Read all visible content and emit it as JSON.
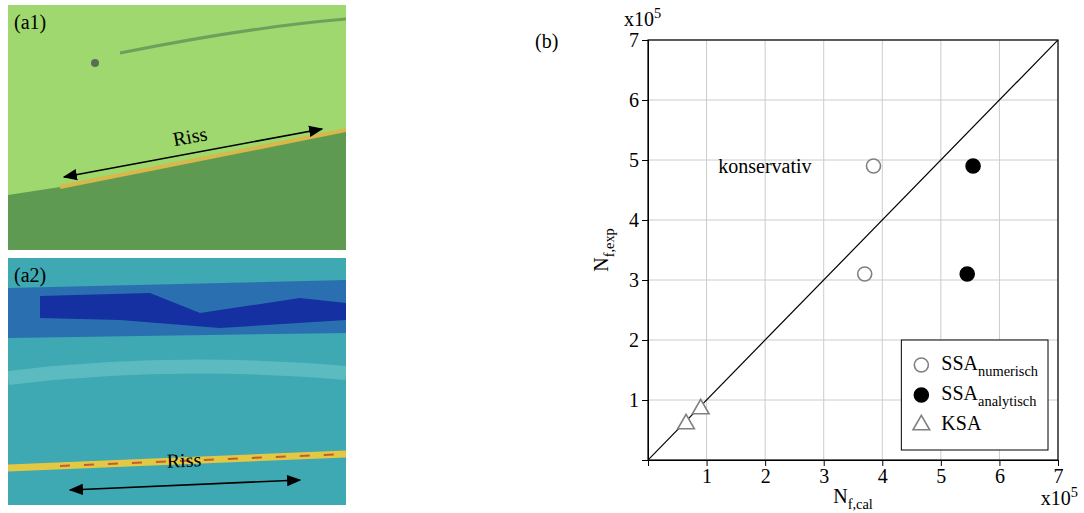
{
  "panels": [
    {
      "label": "(a1)",
      "annotation": "Riss"
    },
    {
      "label": "(a2)",
      "annotation": "Riss"
    }
  ],
  "chart_data": {
    "type": "scatter",
    "panel_label": "(b)",
    "xlabel": {
      "text": "N",
      "subscript": "f,cal"
    },
    "ylabel": {
      "text": "N",
      "subscript": "f,exp"
    },
    "x_multiplier": {
      "text": "x10",
      "superscript": "5"
    },
    "y_multiplier": {
      "text": "x10",
      "superscript": "5"
    },
    "xlim": [
      0,
      7
    ],
    "ylim": [
      0,
      7
    ],
    "xticks": [
      1,
      2,
      3,
      4,
      5,
      6,
      7
    ],
    "yticks": [
      1,
      2,
      3,
      4,
      5,
      6,
      7
    ],
    "grid": true,
    "legend": "lower right",
    "annotations": [
      {
        "text": "konservativ",
        "x": 1.2,
        "y": 4.9
      }
    ],
    "series": [
      {
        "name": "SSA",
        "subscript": "numerisch",
        "marker": "circle-open",
        "color": "#808080",
        "x": [
          3.85,
          3.7
        ],
        "values": [
          4.9,
          3.1
        ]
      },
      {
        "name": "SSA",
        "subscript": "analytisch",
        "marker": "circle",
        "color": "#000000",
        "x": [
          5.55,
          5.45
        ],
        "values": [
          4.9,
          3.1
        ]
      },
      {
        "name": "KSA",
        "marker": "triangle-open",
        "color": "#808080",
        "x": [
          0.65,
          0.9
        ],
        "values": [
          0.6,
          0.85
        ]
      }
    ]
  }
}
